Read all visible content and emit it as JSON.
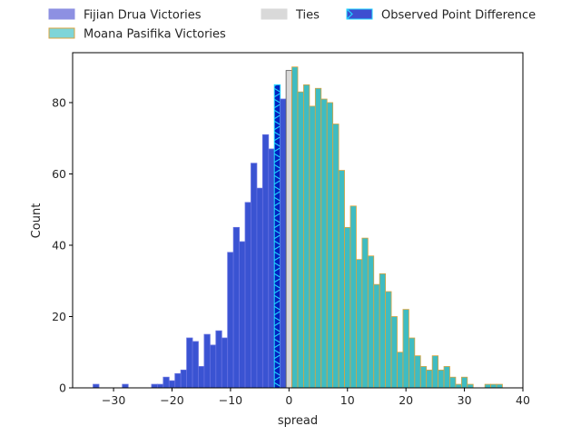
{
  "chart_data": {
    "type": "bar",
    "xlabel": "spread",
    "ylabel": "Count",
    "xlim": [
      -37,
      40
    ],
    "ylim": [
      0,
      94
    ],
    "xticks": [
      -30,
      -20,
      -10,
      0,
      10,
      20,
      30,
      40
    ],
    "yticks": [
      0,
      20,
      40,
      60,
      80
    ],
    "legend": {
      "placement": "top-center, outside plot",
      "entries": [
        "Fijian Drua Victories",
        "Moana Pasifika Victories",
        "Ties",
        "Observed Point Difference"
      ]
    },
    "series": [
      {
        "name": "Fijian Drua Victories",
        "color": "#3a53d2",
        "edge": "#6470e0",
        "x": [
          -33,
          -28,
          -23,
          -22,
          -21,
          -20,
          -19,
          -18,
          -17,
          -16,
          -15,
          -14,
          -13,
          -12,
          -11,
          -10,
          -9,
          -8,
          -7,
          -6,
          -5,
          -4,
          -3,
          -2,
          -1
        ],
        "values": [
          1,
          1,
          1,
          1,
          3,
          2,
          4,
          5,
          14,
          13,
          6,
          15,
          12,
          16,
          14,
          38,
          45,
          41,
          52,
          63,
          56,
          71,
          67,
          85,
          81
        ]
      },
      {
        "name": "Ties",
        "color": "#d9d9d9",
        "edge": "#555555",
        "x": [
          0
        ],
        "values": [
          89
        ]
      },
      {
        "name": "Moana Pasifika Victories",
        "color": "#3fbcc2",
        "edge": "#d9a440",
        "x": [
          1,
          2,
          3,
          4,
          5,
          6,
          7,
          8,
          9,
          10,
          11,
          12,
          13,
          14,
          15,
          16,
          17,
          18,
          19,
          20,
          21,
          22,
          23,
          24,
          25,
          26,
          27,
          28,
          29,
          30,
          31,
          32,
          33,
          34,
          35,
          36
        ],
        "values": [
          90,
          83,
          85,
          79,
          84,
          81,
          80,
          74,
          61,
          45,
          51,
          36,
          42,
          37,
          29,
          32,
          27,
          20,
          10,
          22,
          14,
          9,
          6,
          5,
          9,
          5,
          6,
          3,
          1,
          3,
          1,
          0,
          0,
          1,
          1,
          1
        ]
      }
    ],
    "observed_point_difference": {
      "name": "Observed Point Difference",
      "x": -2,
      "value": 85,
      "color": "#0022c0",
      "hatch_color": "#22d4ff"
    }
  }
}
